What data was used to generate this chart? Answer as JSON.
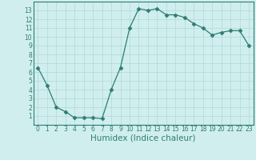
{
  "x": [
    0,
    1,
    2,
    3,
    4,
    5,
    6,
    7,
    8,
    9,
    10,
    11,
    12,
    13,
    14,
    15,
    16,
    17,
    18,
    19,
    20,
    21,
    22,
    23
  ],
  "y": [
    6.5,
    4.5,
    2.0,
    1.5,
    0.8,
    0.8,
    0.8,
    0.7,
    4.0,
    6.5,
    11.0,
    13.2,
    13.0,
    13.2,
    12.5,
    12.5,
    12.2,
    11.5,
    11.0,
    10.2,
    10.5,
    10.7,
    10.7,
    9.0
  ],
  "color": "#2e7d74",
  "bg_color": "#d0eeee",
  "grid_color": "#b0d8d8",
  "xlabel": "Humidex (Indice chaleur)",
  "xlim": [
    -0.5,
    23.5
  ],
  "ylim": [
    0,
    14
  ],
  "yticks": [
    1,
    2,
    3,
    4,
    5,
    6,
    7,
    8,
    9,
    10,
    11,
    12,
    13
  ],
  "xticks": [
    0,
    1,
    2,
    3,
    4,
    5,
    6,
    7,
    8,
    9,
    10,
    11,
    12,
    13,
    14,
    15,
    16,
    17,
    18,
    19,
    20,
    21,
    22,
    23
  ],
  "tick_label_fontsize": 5.5,
  "xlabel_fontsize": 7.5,
  "marker_size": 2.5,
  "linewidth": 0.9
}
